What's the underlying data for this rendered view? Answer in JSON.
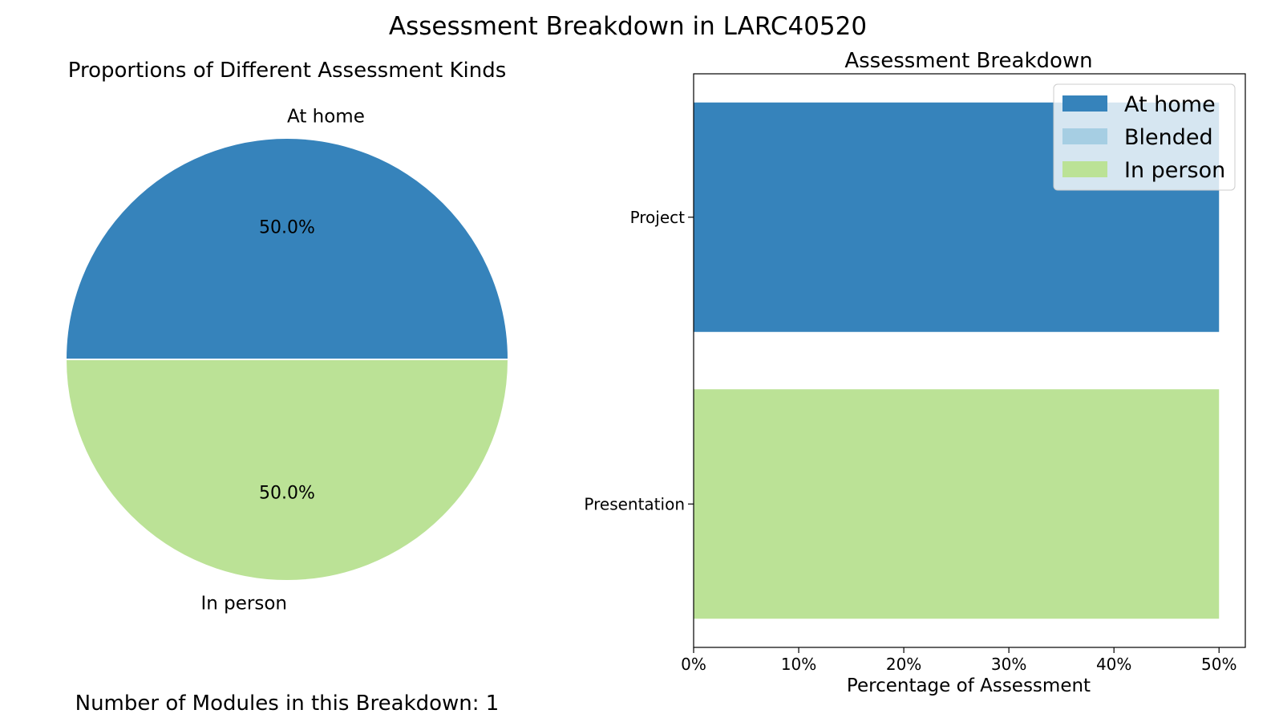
{
  "figure": {
    "title": "Assessment Breakdown in LARC40520",
    "footer": "Number of Modules in this Breakdown: 1"
  },
  "colors": {
    "at_home": "#3683bb",
    "blended": "#a6cee3",
    "in_person": "#bbe296"
  },
  "chart_data": [
    {
      "type": "pie",
      "title": "Proportions of Different Assessment Kinds",
      "slices": [
        {
          "label": "At home",
          "value": 50.0,
          "pct_label": "50.0%",
          "color": "#3683bb"
        },
        {
          "label": "In person",
          "value": 50.0,
          "pct_label": "50.0%",
          "color": "#bbe296"
        }
      ]
    },
    {
      "type": "bar",
      "orientation": "horizontal",
      "title": "Assessment Breakdown",
      "xlabel": "Percentage of Assessment",
      "ylabel": "",
      "xlim": [
        0,
        52.5
      ],
      "xticks": [
        0,
        10,
        20,
        30,
        40,
        50
      ],
      "xtick_labels": [
        "0%",
        "10%",
        "20%",
        "30%",
        "40%",
        "50%"
      ],
      "categories": [
        "Project",
        "Presentation"
      ],
      "bars": [
        {
          "category": "Project",
          "series": "At home",
          "value": 50,
          "color": "#3683bb"
        },
        {
          "category": "Presentation",
          "series": "In person",
          "value": 50,
          "color": "#bbe296"
        }
      ],
      "legend": {
        "placement": "top-right",
        "entries": [
          {
            "label": "At home",
            "color": "#3683bb"
          },
          {
            "label": "Blended",
            "color": "#a6cee3"
          },
          {
            "label": "In person",
            "color": "#bbe296"
          }
        ]
      }
    }
  ]
}
